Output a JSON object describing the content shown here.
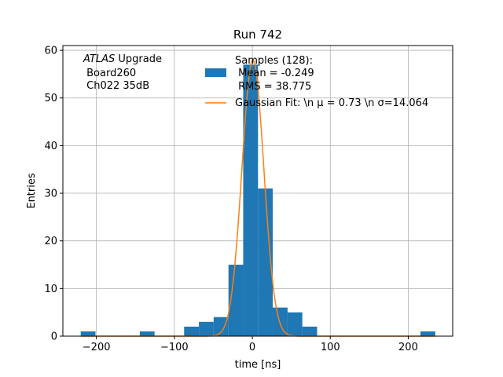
{
  "chart_data": {
    "type": "histogram",
    "title": "Run 742",
    "xlabel": "time [ns]",
    "ylabel": "Entries",
    "xlim": [
      -243,
      257
    ],
    "ylim": [
      0,
      61
    ],
    "xticks": [
      -200,
      -100,
      0,
      100,
      200
    ],
    "yticks": [
      0,
      10,
      20,
      30,
      40,
      50,
      60
    ],
    "xtick_labels": [
      "−200",
      "−100",
      "0",
      "100",
      "200"
    ],
    "ytick_labels": [
      "0",
      "10",
      "20",
      "30",
      "40",
      "50",
      "60"
    ],
    "grid": true,
    "legend_position": "top-center",
    "colors": {
      "histogram": "#1f77b4",
      "fit": "#ff7f0e",
      "grid": "#b0b0b0"
    },
    "bins": [
      {
        "x0": -220.1,
        "x1": -201.2,
        "count": 1
      },
      {
        "x0": -144.3,
        "x1": -125.4,
        "count": 1
      },
      {
        "x0": -87.5,
        "x1": -68.5,
        "count": 2
      },
      {
        "x0": -68.5,
        "x1": -49.6,
        "count": 3
      },
      {
        "x0": -49.6,
        "x1": -30.6,
        "count": 4
      },
      {
        "x0": -30.6,
        "x1": -11.7,
        "count": 15
      },
      {
        "x0": -11.7,
        "x1": 7.3,
        "count": 57
      },
      {
        "x0": 7.3,
        "x1": 26.2,
        "count": 31
      },
      {
        "x0": 26.2,
        "x1": 45.2,
        "count": 6
      },
      {
        "x0": 45.2,
        "x1": 64.1,
        "count": 5
      },
      {
        "x0": 64.1,
        "x1": 83.1,
        "count": 2
      },
      {
        "x0": 215.6,
        "x1": 234.6,
        "count": 1
      }
    ],
    "fit": {
      "mu": 0.73,
      "sigma": 14.064,
      "amplitude": 58,
      "x_range": [
        -220,
        235
      ]
    },
    "legend": {
      "samples_line1": "Samples (128):",
      "samples_line2": " Mean = -0.249",
      "samples_line3": " RMS = 38.775",
      "fit_label": "Gaussian Fit: \\n μ = 0.73 \\n σ=14.064"
    },
    "annotation": {
      "experiment": "ATLAS",
      "suffix": " Upgrade",
      "line2": " Board260",
      "line3": " Ch022 35dB"
    }
  }
}
